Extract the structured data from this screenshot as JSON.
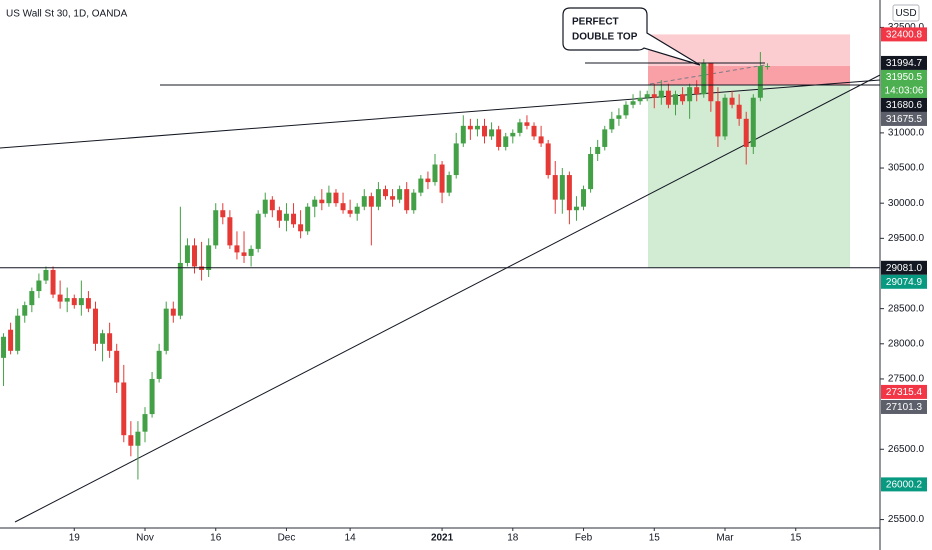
{
  "chart_data": {
    "type": "candlestick",
    "title": "US Wall St 30, 1D, OANDA",
    "currency": "USD",
    "annotation": [
      "PERFECT",
      "DOUBLE TOP"
    ],
    "up_color": "#43a047",
    "down_color": "#e53935",
    "categories": [
      null,
      null,
      null,
      null,
      null,
      null,
      null,
      null,
      null,
      null,
      "19",
      null,
      null,
      null,
      null,
      null,
      null,
      null,
      null,
      null,
      "Nov",
      null,
      null,
      null,
      null,
      null,
      null,
      null,
      null,
      null,
      "16",
      null,
      null,
      null,
      null,
      null,
      null,
      null,
      null,
      null,
      "Dec",
      null,
      null,
      null,
      null,
      null,
      null,
      null,
      null,
      "14",
      null,
      null,
      null,
      null,
      null,
      null,
      null,
      null,
      null,
      null,
      null,
      null,
      "2021",
      null,
      null,
      null,
      null,
      null,
      null,
      null,
      null,
      null,
      "18",
      null,
      null,
      null,
      null,
      null,
      null,
      null,
      null,
      null,
      "Feb",
      null,
      null,
      null,
      null,
      null,
      null,
      null,
      null,
      null,
      "15",
      null,
      null,
      null,
      null,
      null,
      null,
      null,
      null,
      null,
      "Mar",
      null,
      null,
      null,
      null,
      null,
      null,
      null,
      null,
      null,
      "15",
      null,
      null,
      null,
      null,
      null,
      null,
      null,
      null,
      null,
      null
    ],
    "open": [
      27800,
      28200,
      27900,
      28400,
      28550,
      28750,
      28900,
      29050,
      28700,
      28600,
      28650,
      28550,
      28650,
      28500,
      28000,
      28150,
      27900,
      27450,
      26700,
      26550,
      26750,
      27000,
      27500,
      27900,
      28500,
      28400,
      29150,
      29400,
      29100,
      29050,
      29400,
      29900,
      29800,
      29400,
      29300,
      29250,
      29350,
      29850,
      30050,
      29900,
      29750,
      29850,
      29700,
      29600,
      29950,
      30050,
      30000,
      30150,
      30000,
      29900,
      29850,
      29950,
      30100,
      29950,
      30200,
      30100,
      30050,
      30200,
      29900,
      30150,
      30350,
      30300,
      30550,
      30150,
      30400,
      30850,
      31100,
      31050,
      31100,
      30950,
      31050,
      30800,
      30950,
      31000,
      31150,
      31100,
      30950,
      30850,
      30400,
      30050,
      30400,
      29900,
      29950,
      30200,
      30700,
      30800,
      31050,
      31200,
      31250,
      31400,
      31450,
      31500,
      31550,
      31500,
      31600,
      31400,
      31550,
      31450,
      31650,
      31550,
      31990,
      31450,
      30950,
      31500,
      31400,
      31200,
      30800,
      31500,
      31950,
      null,
      null,
      null,
      null,
      null,
      null,
      null,
      null,
      null,
      null,
      null,
      null,
      null,
      null
    ],
    "high": [
      28150,
      28300,
      28500,
      28600,
      28800,
      29000,
      29100,
      29100,
      28900,
      28800,
      28700,
      28900,
      28750,
      28600,
      28200,
      28300,
      28000,
      27700,
      26900,
      26900,
      27100,
      27600,
      28000,
      28600,
      28600,
      29950,
      29500,
      29500,
      29450,
      29500,
      30000,
      30000,
      29900,
      29600,
      29600,
      29400,
      29900,
      30150,
      30100,
      29950,
      30000,
      30000,
      29900,
      30000,
      30100,
      30200,
      30250,
      30200,
      30150,
      30050,
      30000,
      30200,
      30150,
      30300,
      30250,
      30200,
      30250,
      30300,
      30200,
      30400,
      30450,
      30700,
      30600,
      30450,
      31000,
      31250,
      31200,
      31200,
      31200,
      31150,
      31100,
      31000,
      31050,
      31200,
      31250,
      31150,
      31100,
      30900,
      30600,
      30500,
      30450,
      30100,
      30250,
      30800,
      30900,
      31100,
      31300,
      31350,
      31450,
      31550,
      31600,
      31600,
      31700,
      31750,
      31700,
      31600,
      31650,
      31700,
      31750,
      32050,
      32000,
      31650,
      31550,
      31600,
      31550,
      31300,
      31550,
      32150,
      31990,
      null,
      null,
      null,
      null,
      null,
      null,
      null,
      null,
      null,
      null,
      null,
      null,
      null,
      null
    ],
    "low": [
      27400,
      27850,
      27850,
      28300,
      28450,
      28650,
      28850,
      28650,
      28500,
      28450,
      28500,
      28400,
      28450,
      27900,
      27750,
      27800,
      27300,
      26600,
      26400,
      26070,
      26600,
      26950,
      27450,
      27850,
      28300,
      28350,
      29100,
      29000,
      28900,
      28950,
      29350,
      29700,
      29350,
      29200,
      29150,
      29100,
      29300,
      29800,
      29800,
      29650,
      29600,
      29650,
      29500,
      29550,
      29800,
      29900,
      29950,
      29950,
      29850,
      29800,
      29750,
      29900,
      29400,
      29900,
      30050,
      29950,
      30000,
      29850,
      29850,
      30100,
      30200,
      30250,
      30000,
      30100,
      30350,
      30800,
      30900,
      30950,
      30850,
      30900,
      30750,
      30750,
      30850,
      30950,
      31050,
      30900,
      30800,
      30350,
      29850,
      29850,
      29700,
      29750,
      29900,
      30150,
      30600,
      30750,
      31000,
      31100,
      31200,
      31350,
      31400,
      31450,
      31350,
      31400,
      31350,
      31250,
      31400,
      31200,
      31450,
      31500,
      31300,
      30800,
      30900,
      31350,
      31100,
      30550,
      30700,
      31450,
      31900,
      null,
      null,
      null,
      null,
      null,
      null,
      null,
      null,
      null,
      null,
      null,
      null,
      null,
      null
    ],
    "close": [
      28100,
      27900,
      28400,
      28550,
      28750,
      28900,
      29050,
      28700,
      28600,
      28650,
      28550,
      28650,
      28500,
      28000,
      28150,
      27900,
      27450,
      26700,
      26550,
      26750,
      27000,
      27500,
      27900,
      28500,
      28400,
      29150,
      29400,
      29100,
      29050,
      29400,
      29900,
      29800,
      29400,
      29300,
      29250,
      29350,
      29850,
      30050,
      29900,
      29750,
      29850,
      29700,
      29600,
      29950,
      30050,
      30000,
      30150,
      30000,
      29900,
      29850,
      29950,
      30100,
      29950,
      30200,
      30100,
      30050,
      30200,
      29900,
      30150,
      30350,
      30300,
      30550,
      30150,
      30400,
      30850,
      31100,
      31050,
      31100,
      30950,
      31050,
      30800,
      30950,
      31000,
      31150,
      31100,
      30950,
      30850,
      30400,
      30050,
      30400,
      29900,
      29950,
      30200,
      30700,
      30800,
      31050,
      31200,
      31250,
      31400,
      31450,
      31500,
      31550,
      31500,
      31600,
      31400,
      31550,
      31450,
      31650,
      31550,
      31990,
      31450,
      30950,
      31500,
      31400,
      31200,
      30800,
      31500,
      31950,
      31950.5,
      null,
      null,
      null,
      null,
      null,
      null,
      null,
      null,
      null,
      null,
      null,
      null,
      null,
      null
    ],
    "ylim": [
      25380,
      32890
    ],
    "yticks": [
      {
        "value": 32500,
        "label": "32500.0"
      },
      {
        "value": 31000,
        "label": "31000.0"
      },
      {
        "value": 30500,
        "label": "30500.0"
      },
      {
        "value": 30000,
        "label": "30000.0"
      },
      {
        "value": 29500,
        "label": "29500.0"
      },
      {
        "value": 28500,
        "label": "28500.0"
      },
      {
        "value": 28000,
        "label": "28000.0"
      },
      {
        "value": 27500,
        "label": "27500.0"
      },
      {
        "value": 26500,
        "label": "26500.0"
      },
      {
        "value": 25500,
        "label": "25500.0"
      }
    ],
    "price_labels": [
      {
        "value": 32400.8,
        "label": "32400.8",
        "color": "#f23645"
      },
      {
        "value": 31994.7,
        "label": "31994.7",
        "color": "#131722"
      },
      {
        "value": 31950.5,
        "label": "31950.5",
        "color": "#4caf50",
        "countdown": "14:03:06"
      },
      {
        "value": 31680.6,
        "label": "31680.6",
        "color": "#131722"
      },
      {
        "value": 31675.5,
        "label": "31675.5",
        "color": "#5d606b"
      },
      {
        "value": 29081.0,
        "label": "29081.0",
        "color": "#131722"
      },
      {
        "value": 29074.9,
        "label": "29074.9",
        "color": "#089981"
      },
      {
        "value": 27315.4,
        "label": "27315.4",
        "color": "#f23645"
      },
      {
        "value": 27101.3,
        "label": "27101.3",
        "color": "#5d606b"
      },
      {
        "value": 26000.2,
        "label": "26000.2",
        "color": "#089981"
      }
    ]
  }
}
